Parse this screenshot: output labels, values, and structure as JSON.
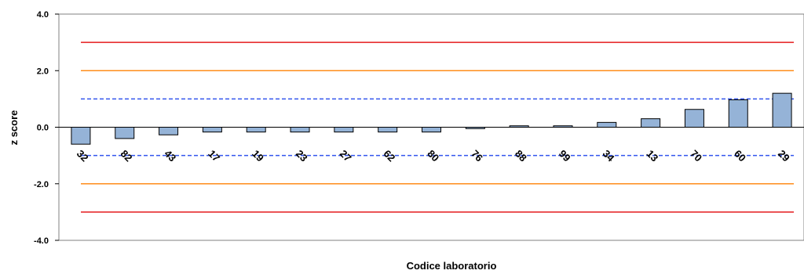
{
  "chart_data": {
    "type": "bar",
    "title": "",
    "xlabel": "Codice laboratorio",
    "ylabel": "z score",
    "ylim": [
      -4,
      4
    ],
    "yticks": [
      "4.0",
      "2.0",
      "0.0",
      "-2.0",
      "-4.0"
    ],
    "ytick_values": [
      4,
      2,
      0,
      -2,
      -4
    ],
    "categories": [
      "32",
      "82",
      "43",
      "17",
      "19",
      "23",
      "27",
      "62",
      "80",
      "76",
      "88",
      "99",
      "34",
      "13",
      "70",
      "60",
      "29"
    ],
    "values": [
      -0.6,
      -0.4,
      -0.27,
      -0.17,
      -0.17,
      -0.17,
      -0.17,
      -0.17,
      -0.17,
      -0.05,
      0.05,
      0.05,
      0.17,
      0.3,
      0.63,
      0.97,
      1.2
    ],
    "reference_lines": [
      {
        "y": 3,
        "color": "#e41a1c",
        "style": "solid"
      },
      {
        "y": -3,
        "color": "#e41a1c",
        "style": "solid"
      },
      {
        "y": 2,
        "color": "#ff8c1a",
        "style": "solid"
      },
      {
        "y": -2,
        "color": "#ff8c1a",
        "style": "solid"
      },
      {
        "y": 1,
        "color": "#3355ee",
        "style": "dashed"
      },
      {
        "y": -1,
        "color": "#3355ee",
        "style": "dashed"
      }
    ],
    "bar_color": "#95b3d7",
    "bar_border": "#000000",
    "grid": false,
    "legend": "none"
  }
}
